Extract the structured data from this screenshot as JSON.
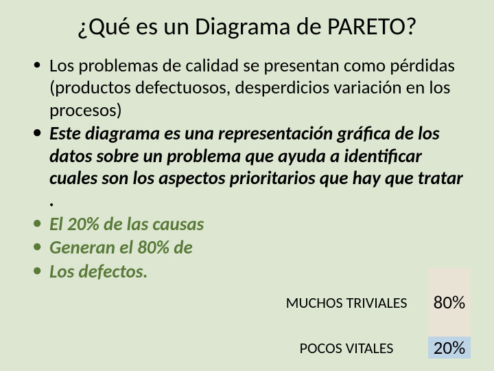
{
  "title": "¿Qué es un Diagrama de PARETO?",
  "bullets": {
    "b1": "Los problemas de calidad se presentan como pérdidas (productos defectuosos, desperdicios variación en los procesos)",
    "b2": "Este diagrama es una representación gráfica de los datos sobre un problema  que ayuda a identificar cuales son los aspectos prioritarios que hay que tratar .",
    "b3": "El 20% de las causas",
    "b4": "Generan el 80% de",
    "b5": "Los defectos."
  },
  "pareto": {
    "top_label": "MUCHOS TRIVIALES",
    "bottom_label": "POCOS VITALES",
    "top_pct": "80%",
    "bottom_pct": "20%",
    "colors": {
      "bg_top": "#e9e3d6",
      "bg_bottom": "#bcd4e6"
    }
  },
  "slide_bg": "#dce6d0"
}
